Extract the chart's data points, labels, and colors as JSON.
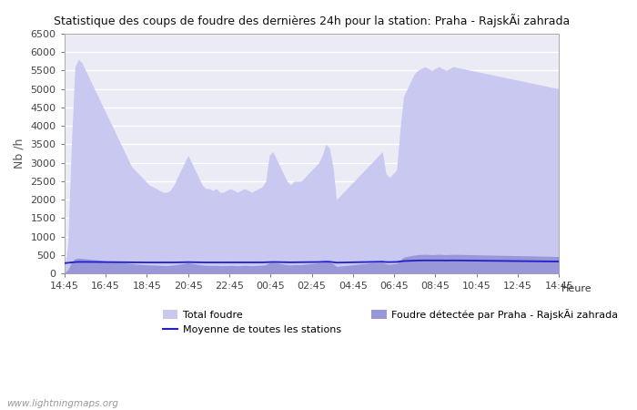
{
  "title": "Statistique des coups de foudre des dernières 24h pour la station: Praha - RajskÃi zahrada",
  "ylabel": "Nb /h",
  "xlabel": "Heure",
  "watermark": "www.lightningmaps.org",
  "ylim": [
    0,
    6500
  ],
  "yticks": [
    0,
    500,
    1000,
    1500,
    2000,
    2500,
    3000,
    3500,
    4000,
    4500,
    5000,
    5500,
    6000,
    6500
  ],
  "xtick_labels": [
    "14:45",
    "16:45",
    "18:45",
    "20:45",
    "22:45",
    "00:45",
    "02:45",
    "04:45",
    "06:45",
    "08:45",
    "10:45",
    "12:45",
    "14:45"
  ],
  "legend_total": "Total foudre",
  "legend_station": "Foudre détectée par Praha - RajskÃi zahrada",
  "legend_moyenne": "Moyenne de toutes les stations",
  "fill_total_color": "#c8c8f0",
  "fill_station_color": "#9898d8",
  "line_moyenne_color": "#2020cc",
  "background_color": "#ffffff",
  "plot_bg_color": "#ebebf5",
  "total_foudre": [
    100,
    800,
    3500,
    5600,
    5800,
    5700,
    5500,
    5300,
    5100,
    4900,
    4700,
    4500,
    4300,
    4100,
    3900,
    3700,
    3500,
    3300,
    3100,
    2900,
    2800,
    2700,
    2600,
    2500,
    2400,
    2350,
    2300,
    2250,
    2200,
    2200,
    2250,
    2400,
    2600,
    2800,
    3000,
    3200,
    3000,
    2800,
    2600,
    2400,
    2300,
    2300,
    2250,
    2300,
    2200,
    2200,
    2250,
    2300,
    2250,
    2200,
    2250,
    2300,
    2250,
    2200,
    2250,
    2300,
    2350,
    2500,
    3200,
    3300,
    3100,
    2900,
    2700,
    2500,
    2400,
    2500,
    2500,
    2500,
    2600,
    2700,
    2800,
    2900,
    3000,
    3200,
    3500,
    3400,
    2900,
    2000,
    2100,
    2200,
    2300,
    2400,
    2500,
    2600,
    2700,
    2800,
    2900,
    3000,
    3100,
    3200,
    3300,
    2700,
    2600,
    2700,
    2800,
    3900,
    4800,
    5000,
    5200,
    5400,
    5500,
    5550,
    5600,
    5550,
    5500,
    5550,
    5600,
    5550,
    5500,
    5550,
    5600,
    5580,
    5560,
    5540,
    5520,
    5500,
    5480,
    5460,
    5440,
    5420,
    5400,
    5380,
    5360,
    5340,
    5320,
    5300,
    5280,
    5260,
    5240,
    5220,
    5200,
    5180,
    5160,
    5140,
    5120,
    5100,
    5080,
    5060,
    5040,
    5020,
    5000
  ],
  "station_foudre": [
    20,
    100,
    300,
    400,
    420,
    410,
    400,
    390,
    380,
    370,
    360,
    350,
    340,
    330,
    320,
    310,
    300,
    290,
    280,
    270,
    260,
    250,
    245,
    240,
    235,
    230,
    225,
    220,
    215,
    215,
    220,
    230,
    245,
    260,
    275,
    290,
    275,
    260,
    245,
    230,
    220,
    220,
    215,
    220,
    210,
    210,
    215,
    220,
    215,
    210,
    215,
    220,
    215,
    210,
    215,
    220,
    225,
    240,
    290,
    300,
    285,
    270,
    255,
    240,
    230,
    240,
    240,
    240,
    250,
    260,
    270,
    280,
    290,
    300,
    320,
    310,
    270,
    190,
    200,
    210,
    220,
    230,
    240,
    250,
    260,
    270,
    280,
    290,
    295,
    300,
    310,
    260,
    250,
    260,
    270,
    360,
    440,
    460,
    480,
    500,
    510,
    515,
    520,
    515,
    510,
    515,
    520,
    515,
    510,
    515,
    520,
    518,
    516,
    514,
    512,
    510,
    508,
    506,
    504,
    502,
    500,
    498,
    496,
    494,
    492,
    490,
    488,
    486,
    484,
    482,
    480,
    478,
    476,
    474,
    472,
    470,
    468,
    466,
    464,
    462,
    460
  ],
  "moyenne_stations": [
    280,
    290,
    300,
    310,
    315,
    315,
    315,
    314,
    313,
    312,
    311,
    310,
    309,
    308,
    307,
    306,
    305,
    304,
    303,
    302,
    301,
    300,
    300,
    300,
    299,
    299,
    299,
    298,
    298,
    298,
    299,
    300,
    302,
    304,
    306,
    308,
    307,
    305,
    303,
    301,
    300,
    300,
    299,
    300,
    299,
    299,
    300,
    300,
    300,
    299,
    300,
    300,
    299,
    299,
    300,
    300,
    301,
    305,
    310,
    312,
    310,
    308,
    306,
    304,
    303,
    304,
    304,
    304,
    305,
    306,
    308,
    310,
    312,
    315,
    320,
    318,
    308,
    295,
    297,
    299,
    301,
    303,
    305,
    307,
    309,
    311,
    313,
    315,
    316,
    318,
    320,
    312,
    310,
    312,
    314,
    325,
    338,
    342,
    346,
    350,
    352,
    354,
    355,
    354,
    352,
    354,
    355,
    354,
    352,
    354,
    355,
    354,
    353,
    352,
    351,
    350,
    349,
    348,
    347,
    346,
    345,
    344,
    343,
    342,
    341,
    340,
    339,
    338,
    337,
    336,
    335,
    334,
    333,
    332,
    331,
    330,
    329,
    328,
    327,
    326,
    325
  ]
}
